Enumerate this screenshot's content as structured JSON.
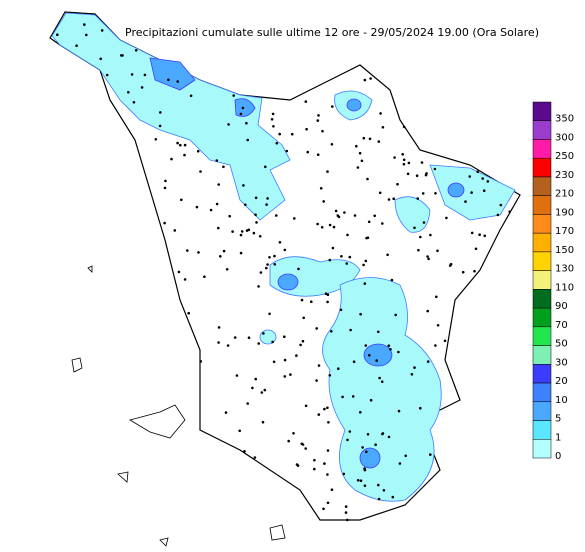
{
  "title": "Precipitazioni cumulate sulle ultime 12 ore - 29/05/2024 19.00 (Ora Solare)",
  "legend": {
    "items": [
      {
        "label": "350",
        "color": "#5a0a8c"
      },
      {
        "label": "300",
        "color": "#9b3dcc"
      },
      {
        "label": "250",
        "color": "#ff1aa8"
      },
      {
        "label": "230",
        "color": "#ff0000"
      },
      {
        "label": "210",
        "color": "#b4601e"
      },
      {
        "label": "190",
        "color": "#e0700f"
      },
      {
        "label": "170",
        "color": "#ff8c1a"
      },
      {
        "label": "150",
        "color": "#ffb000"
      },
      {
        "label": "130",
        "color": "#ffd200"
      },
      {
        "label": "110",
        "color": "#f5f07a"
      },
      {
        "label": "90",
        "color": "#006e1e"
      },
      {
        "label": "70",
        "color": "#00a01e"
      },
      {
        "label": "50",
        "color": "#22e650"
      },
      {
        "label": "30",
        "color": "#7ff0b4"
      },
      {
        "label": "20",
        "color": "#3c3cff"
      },
      {
        "label": "10",
        "color": "#3c82ff"
      },
      {
        "label": "5",
        "color": "#4ba8ff"
      },
      {
        "label": "1",
        "color": "#5ae6ff"
      },
      {
        "label": "0",
        "color": "#b4ffff"
      }
    ]
  }
}
